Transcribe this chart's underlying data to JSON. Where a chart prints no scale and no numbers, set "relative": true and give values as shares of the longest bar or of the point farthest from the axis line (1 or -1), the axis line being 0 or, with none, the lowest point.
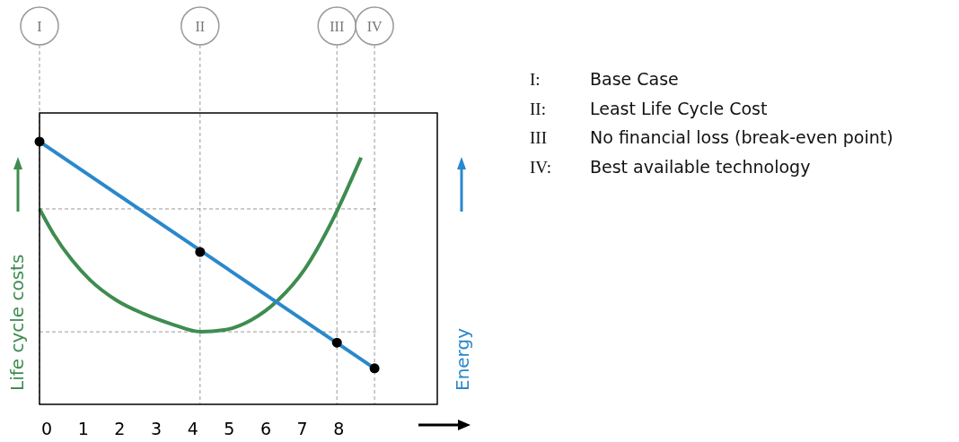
{
  "chart_data": {
    "type": "line",
    "relative": true,
    "ylabel": "Life cycle costs",
    "y2label": "Energy",
    "xlim": [
      -0.2,
      10.7
    ],
    "xticks": [
      0,
      1,
      2,
      3,
      4,
      5,
      6,
      7,
      8
    ],
    "series": [
      {
        "color": "#3f8c50",
        "x": [
          -0.2,
          0.2,
          0.69,
          1.18,
          1.91,
          2.65,
          3.39,
          4.22,
          4.86,
          5.6,
          6.33,
          7.07,
          7.8,
          8.61
        ],
        "values": [
          0.744,
          0.645,
          0.549,
          0.474,
          0.396,
          0.345,
          0.307,
          0.276,
          0.283,
          0.321,
          0.396,
          0.515,
          0.693,
          0.939
        ]
      },
      {
        "color": "#2a88cc",
        "x": [
          -0.2,
          8.98
        ],
        "values": [
          1,
          0.137
        ]
      },
      {
        "type": "scatter",
        "color": "#000000",
        "marker": "circle",
        "x": [
          -0.2,
          4.2,
          7.95,
          8.98
        ],
        "values": [
          1,
          0.58,
          0.235,
          0.137
        ]
      }
    ],
    "ref_lines": [
      {
        "axis": "x",
        "value": -0.2,
        "label": "I",
        "color": "#999999",
        "line_style": "dashed"
      },
      {
        "axis": "x",
        "value": 4.2,
        "label": "II",
        "color": "#999999",
        "line_style": "dashed"
      },
      {
        "axis": "x",
        "value": 7.95,
        "label": "III",
        "color": "#999999",
        "line_style": "dashed"
      },
      {
        "axis": "x",
        "value": 8.98,
        "label": "IV",
        "color": "#999999",
        "line_style": "dashed"
      },
      {
        "axis": "y",
        "value": 0.744,
        "color": "#999999",
        "line_style": "dashed"
      },
      {
        "axis": "y",
        "value": 0.276,
        "color": "#999999",
        "line_style": "dashed"
      }
    ],
    "annotations": [
      "I:\tBase Case",
      "II:\tLeast Life Cycle Cost",
      "III\tNo financial loss (break-even point)",
      "IV:\tBest available technology"
    ]
  }
}
